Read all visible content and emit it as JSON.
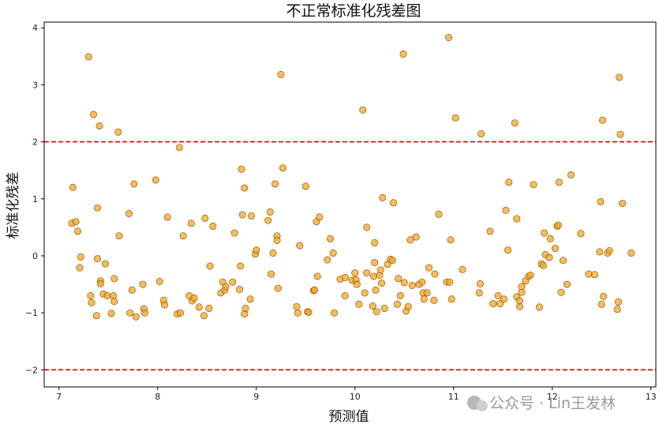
{
  "chart_data": {
    "type": "scatter",
    "title": "不正常标准化残差图",
    "xlabel": "预测值",
    "ylabel": "标准化残差",
    "xlim": [
      6.85,
      13.05
    ],
    "ylim": [
      -2.3,
      4.1
    ],
    "xticks": [
      7,
      8,
      9,
      10,
      11,
      12,
      13
    ],
    "yticks": [
      -2,
      -1,
      0,
      1,
      2,
      3,
      4
    ],
    "reference_lines": [
      2,
      -2
    ],
    "colors": {
      "point_fill": "#f5a623",
      "point_edge": "#7a4a00",
      "reference_line": "#e00000"
    },
    "watermark": "公众号 · Lin王发林",
    "points": [
      [
        7.13,
        0.57
      ],
      [
        7.14,
        1.2
      ],
      [
        7.17,
        0.6
      ],
      [
        7.19,
        0.43
      ],
      [
        7.21,
        -0.21
      ],
      [
        7.22,
        -0.02
      ],
      [
        7.3,
        3.49
      ],
      [
        7.32,
        -0.7
      ],
      [
        7.33,
        -0.82
      ],
      [
        7.35,
        2.48
      ],
      [
        7.38,
        -1.05
      ],
      [
        7.39,
        0.84
      ],
      [
        7.39,
        -0.05
      ],
      [
        7.41,
        2.28
      ],
      [
        7.42,
        -0.44
      ],
      [
        7.42,
        -0.49
      ],
      [
        7.45,
        -0.67
      ],
      [
        7.47,
        -0.14
      ],
      [
        7.49,
        -0.7
      ],
      [
        7.53,
        -1.01
      ],
      [
        7.55,
        -0.7
      ],
      [
        7.56,
        -0.8
      ],
      [
        7.56,
        -0.4
      ],
      [
        7.6,
        2.17
      ],
      [
        7.61,
        0.35
      ],
      [
        7.71,
        0.74
      ],
      [
        7.72,
        -1.0
      ],
      [
        7.74,
        -0.6
      ],
      [
        7.76,
        1.26
      ],
      [
        7.78,
        -1.07
      ],
      [
        7.85,
        -0.5
      ],
      [
        7.86,
        -0.93
      ],
      [
        7.87,
        -1.0
      ],
      [
        7.98,
        1.33
      ],
      [
        8.02,
        -0.45
      ],
      [
        8.06,
        -0.78
      ],
      [
        8.07,
        -0.86
      ],
      [
        8.1,
        0.68
      ],
      [
        8.2,
        -1.02
      ],
      [
        8.22,
        1.9
      ],
      [
        8.23,
        -1.0
      ],
      [
        8.26,
        0.35
      ],
      [
        8.32,
        -0.7
      ],
      [
        8.34,
        0.57
      ],
      [
        8.35,
        -0.79
      ],
      [
        8.37,
        -0.74
      ],
      [
        8.42,
        -0.9
      ],
      [
        8.47,
        -1.05
      ],
      [
        8.48,
        0.66
      ],
      [
        8.52,
        -0.92
      ],
      [
        8.53,
        -0.18
      ],
      [
        8.56,
        0.52
      ],
      [
        8.64,
        -0.65
      ],
      [
        8.66,
        -0.46
      ],
      [
        8.68,
        -0.6
      ],
      [
        8.69,
        -0.54
      ],
      [
        8.76,
        -0.46
      ],
      [
        8.78,
        0.4
      ],
      [
        8.83,
        -0.59
      ],
      [
        8.84,
        -0.18
      ],
      [
        8.85,
        1.52
      ],
      [
        8.86,
        0.72
      ],
      [
        8.88,
        -1.02
      ],
      [
        8.88,
        1.19
      ],
      [
        8.89,
        -0.92
      ],
      [
        8.94,
        -0.76
      ],
      [
        8.95,
        0.7
      ],
      [
        8.99,
        0.03
      ],
      [
        9.0,
        0.1
      ],
      [
        9.12,
        0.62
      ],
      [
        9.14,
        0.77
      ],
      [
        9.15,
        -0.32
      ],
      [
        9.17,
        0.05
      ],
      [
        9.19,
        1.26
      ],
      [
        9.21,
        0.35
      ],
      [
        9.21,
        0.27
      ],
      [
        9.22,
        -0.57
      ],
      [
        9.25,
        3.18
      ],
      [
        9.27,
        1.54
      ],
      [
        9.41,
        -0.89
      ],
      [
        9.42,
        -1.0
      ],
      [
        9.44,
        0.18
      ],
      [
        9.5,
        1.22
      ],
      [
        9.52,
        -0.98
      ],
      [
        9.53,
        -0.99
      ],
      [
        9.58,
        -0.61
      ],
      [
        9.59,
        -0.6
      ],
      [
        9.61,
        0.6
      ],
      [
        9.62,
        -0.36
      ],
      [
        9.64,
        0.68
      ],
      [
        9.72,
        -0.07
      ],
      [
        9.75,
        0.3
      ],
      [
        9.78,
        0.05
      ],
      [
        9.79,
        -1.0
      ],
      [
        9.85,
        -0.41
      ],
      [
        9.9,
        -0.7
      ],
      [
        9.9,
        -0.38
      ],
      [
        9.97,
        -0.43
      ],
      [
        10.0,
        -0.3
      ],
      [
        10.01,
        -0.42
      ],
      [
        10.02,
        -0.5
      ],
      [
        10.04,
        -0.85
      ],
      [
        10.08,
        2.56
      ],
      [
        10.1,
        -0.65
      ],
      [
        10.12,
        0.5
      ],
      [
        10.12,
        -0.3
      ],
      [
        10.18,
        -0.88
      ],
      [
        10.19,
        -0.36
      ],
      [
        10.2,
        -0.12
      ],
      [
        10.2,
        0.23
      ],
      [
        10.21,
        -0.6
      ],
      [
        10.22,
        -0.98
      ],
      [
        10.25,
        -0.34
      ],
      [
        10.26,
        -0.25
      ],
      [
        10.27,
        -0.48
      ],
      [
        10.28,
        1.02
      ],
      [
        10.3,
        -0.92
      ],
      [
        10.33,
        -0.15
      ],
      [
        10.36,
        -0.06
      ],
      [
        10.38,
        -0.08
      ],
      [
        10.39,
        0.93
      ],
      [
        10.43,
        -0.85
      ],
      [
        10.44,
        -0.4
      ],
      [
        10.46,
        -0.7
      ],
      [
        10.49,
        3.54
      ],
      [
        10.5,
        -0.47
      ],
      [
        10.52,
        -0.97
      ],
      [
        10.54,
        -0.89
      ],
      [
        10.56,
        0.28
      ],
      [
        10.58,
        -0.52
      ],
      [
        10.62,
        0.33
      ],
      [
        10.65,
        -0.5
      ],
      [
        10.68,
        -0.46
      ],
      [
        10.69,
        -0.65
      ],
      [
        10.7,
        -0.76
      ],
      [
        10.73,
        -0.65
      ],
      [
        10.75,
        -0.21
      ],
      [
        10.8,
        -0.78
      ],
      [
        10.81,
        -0.32
      ],
      [
        10.85,
        0.73
      ],
      [
        10.93,
        -0.46
      ],
      [
        10.95,
        3.83
      ],
      [
        10.96,
        -0.46
      ],
      [
        10.97,
        0.28
      ],
      [
        10.98,
        -0.76
      ],
      [
        11.02,
        2.42
      ],
      [
        11.09,
        -0.24
      ],
      [
        11.26,
        -0.65
      ],
      [
        11.27,
        -0.49
      ],
      [
        11.28,
        2.14
      ],
      [
        11.37,
        0.43
      ],
      [
        11.4,
        -0.84
      ],
      [
        11.45,
        -0.7
      ],
      [
        11.47,
        -0.84
      ],
      [
        11.51,
        -0.76
      ],
      [
        11.53,
        0.8
      ],
      [
        11.55,
        0.1
      ],
      [
        11.56,
        1.29
      ],
      [
        11.62,
        2.33
      ],
      [
        11.64,
        0.65
      ],
      [
        11.64,
        -0.72
      ],
      [
        11.67,
        -0.89
      ],
      [
        11.67,
        -0.79
      ],
      [
        11.69,
        -0.54
      ],
      [
        11.69,
        -0.64
      ],
      [
        11.73,
        -0.44
      ],
      [
        11.76,
        -0.36
      ],
      [
        11.78,
        -0.34
      ],
      [
        11.81,
        1.25
      ],
      [
        11.87,
        -0.9
      ],
      [
        11.89,
        -0.14
      ],
      [
        11.91,
        -0.17
      ],
      [
        11.92,
        0.4
      ],
      [
        11.93,
        0.02
      ],
      [
        11.97,
        -0.03
      ],
      [
        11.98,
        0.3
      ],
      [
        12.03,
        0.13
      ],
      [
        12.05,
        0.52
      ],
      [
        12.06,
        0.54
      ],
      [
        12.07,
        1.29
      ],
      [
        12.09,
        -0.64
      ],
      [
        12.11,
        -0.08
      ],
      [
        12.15,
        -0.5
      ],
      [
        12.19,
        1.42
      ],
      [
        12.29,
        0.39
      ],
      [
        12.37,
        -0.32
      ],
      [
        12.43,
        -0.33
      ],
      [
        12.48,
        0.07
      ],
      [
        12.49,
        0.95
      ],
      [
        12.5,
        -0.85
      ],
      [
        12.51,
        2.38
      ],
      [
        12.52,
        -0.71
      ],
      [
        12.56,
        0.05
      ],
      [
        12.58,
        0.09
      ],
      [
        12.66,
        -0.94
      ],
      [
        12.67,
        -0.81
      ],
      [
        12.68,
        3.13
      ],
      [
        12.69,
        2.13
      ],
      [
        12.71,
        0.92
      ],
      [
        12.8,
        0.05
      ]
    ]
  }
}
